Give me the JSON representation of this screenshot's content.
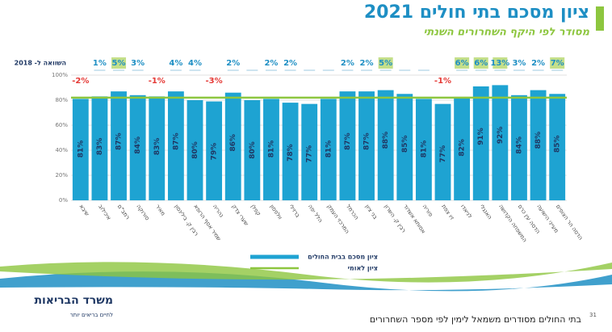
{
  "chart_data": {
    "type": "bar",
    "title": "ציון מסכם בתי חולים 2021",
    "subtitle": "מסודר לפי היקף השחרורים השנתי",
    "comparison_title": "השוואה ל- 2018",
    "categories": [
      "שיבא",
      "איכילוב",
      "רמב\"ם",
      "סורוקה",
      "מאיר",
      "רבין ק. בילינסון",
      "שמיר אסף הרופא",
      "נהריה",
      "שערי צדק",
      "קפלן",
      "וולפסון",
      "ברזילי",
      "הלל יפה",
      "המרכזי העמק",
      "הכרמל",
      "בני ציון",
      "רבין ק. השרון",
      "אסותא אשדוד",
      "פוריה",
      "זיו צפת",
      "לניאדו",
      "האנגלי",
      "המשפחה הקדושה",
      "הדסה עין כרם",
      "מעייני הישועה",
      "הדסה הר הצופים"
    ],
    "series": [
      {
        "name": "ציון מסכם בבית החולים",
        "color": "#1ea3d2",
        "values": [
          81,
          83,
          87,
          84,
          83,
          87,
          80,
          79,
          86,
          80,
          81,
          78,
          77,
          81,
          87,
          87,
          88,
          85,
          81,
          77,
          82,
          91,
          92,
          84,
          88,
          85
        ],
        "value_labels": [
          "81%",
          "83%",
          "87%",
          "84%",
          "83%",
          "87%",
          "80%",
          "79%",
          "86%",
          "80%",
          "81%",
          "78%",
          "77%",
          "81%",
          "87%",
          "87%",
          "88%",
          "85%",
          "81%",
          "77%",
          "82%",
          "91%",
          "92%",
          "84%",
          "88%",
          "85%"
        ]
      },
      {
        "name": "ציון לאומי",
        "color": "#8dc63f",
        "value": 82
      }
    ],
    "changes": [
      -2,
      1,
      5,
      3,
      -1,
      4,
      4,
      -3,
      2,
      null,
      2,
      2,
      null,
      null,
      2,
      2,
      5,
      null,
      null,
      -1,
      6,
      6,
      13,
      3,
      2,
      7
    ],
    "change_labels": [
      "-2%",
      "1%",
      "5%",
      "3%",
      "-1%",
      "4%",
      "4%",
      "-3%",
      "2%",
      null,
      "2%",
      "2%",
      null,
      null,
      "2%",
      "2%",
      "5%",
      null,
      null,
      "-1%",
      "6%",
      "6%",
      "13%",
      "3%",
      "2%",
      "7%"
    ],
    "ylim": [
      0,
      100
    ],
    "yticks": [
      {
        "value": 0,
        "label": "0%"
      },
      {
        "value": 20,
        "label": "20%"
      },
      {
        "value": 40,
        "label": "40%"
      },
      {
        "value": 60,
        "label": "60%"
      },
      {
        "value": 80,
        "label": "80%"
      },
      {
        "value": 100,
        "label": "100%"
      }
    ],
    "grid": true
  },
  "footer": {
    "note": "בתי החולים מסודרים משמאל לימין לפי מספר השחרורים",
    "page": "31",
    "logo": "משרד הבריאות",
    "slogan": "לחיים בריאים יותר"
  }
}
